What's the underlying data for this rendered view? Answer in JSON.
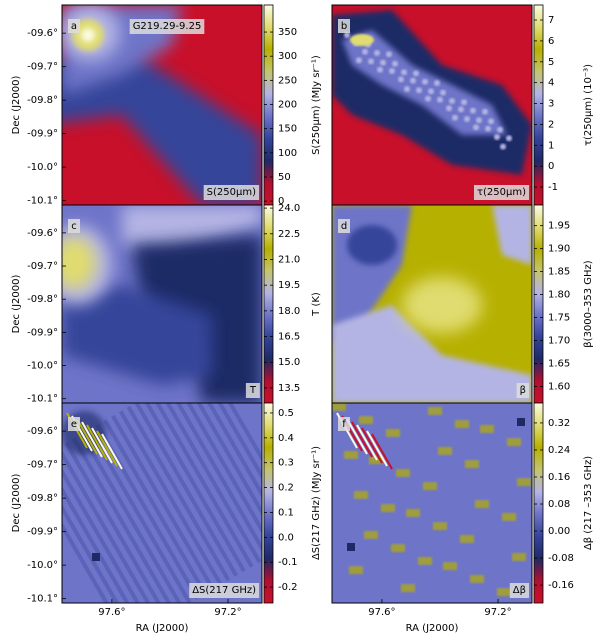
{
  "chart_data": [
    {
      "type": "heatmap",
      "panel_label": "a",
      "title": "G219.29-9.25",
      "annotation": "S(250μm)",
      "colorbar_label": "S(250μm) (MJy sr⁻¹)",
      "clim": [
        -8,
        406
      ],
      "cticks": [
        0,
        50,
        100,
        150,
        200,
        250,
        300,
        350
      ],
      "ylim": [
        -10.113,
        -9.516
      ],
      "yticks": [
        {
          "value": -9.6,
          "label": "-09.6°"
        },
        {
          "value": -9.7,
          "label": "-09.7°"
        },
        {
          "value": -9.8,
          "label": "-09.8°"
        },
        {
          "value": -9.9,
          "label": "-09.9°"
        },
        {
          "value": -10.0,
          "label": "-10.0°"
        },
        {
          "value": -10.1,
          "label": "-10.1°"
        }
      ],
      "ylabel": "Dec (J2000)"
    },
    {
      "type": "heatmap",
      "panel_label": "b",
      "annotation": "τ(250μm)",
      "colorbar_label": "τ(250μm) (10⁻³)",
      "clim": [
        -1.86,
        7.72
      ],
      "cticks": [
        -1,
        0,
        1,
        2,
        3,
        4,
        5,
        6,
        7
      ]
    },
    {
      "type": "heatmap",
      "panel_label": "c",
      "annotation": "T",
      "colorbar_label": "T (K)",
      "clim": [
        12.62,
        24.18
      ],
      "cticks": [
        13.5,
        {
          "value": 15,
          "label": "15.0"
        },
        16.5,
        {
          "value": 18,
          "label": "18.0"
        },
        19.5,
        {
          "value": 21,
          "label": "21.0"
        },
        22.5,
        {
          "value": 24,
          "label": "24.0"
        }
      ],
      "ylim": [
        -10.113,
        -9.516
      ],
      "yticks": [
        {
          "value": -9.6,
          "label": "-09.6°"
        },
        {
          "value": -9.7,
          "label": "-09.7°"
        },
        {
          "value": -9.8,
          "label": "-09.8°"
        },
        {
          "value": -9.9,
          "label": "-09.9°"
        },
        {
          "value": -10.0,
          "label": "-10.0°"
        },
        {
          "value": -10.1,
          "label": "-10.1°"
        }
      ],
      "ylabel": "Dec (J2000)"
    },
    {
      "type": "heatmap",
      "panel_label": "d",
      "annotation": "β",
      "colorbar_label": "β(3000–353 GHz)",
      "clim": [
        1.564,
        1.995
      ],
      "cticks": [
        {
          "value": 1.6,
          "label": "1.60"
        },
        1.65,
        {
          "value": 1.7,
          "label": "1.70"
        },
        1.75,
        {
          "value": 1.8,
          "label": "1.80"
        },
        1.85,
        {
          "value": 1.9,
          "label": "1.90"
        },
        1.95
      ]
    },
    {
      "type": "heatmap",
      "panel_label": "e",
      "annotation": "ΔS(217 GHz)",
      "colorbar_label": "ΔS(217 GHz) (MJy sr⁻¹)",
      "clim": [
        -0.264,
        0.54
      ],
      "cticks": [
        -0.2,
        -0.1,
        {
          "value": 0,
          "label": "0.0"
        },
        0.1,
        0.2,
        0.3,
        0.4,
        0.5
      ],
      "ylim": [
        -10.113,
        -9.516
      ],
      "yticks": [
        {
          "value": -9.6,
          "label": "-09.6°"
        },
        {
          "value": -9.7,
          "label": "-09.7°"
        },
        {
          "value": -9.8,
          "label": "-09.8°"
        },
        {
          "value": -9.9,
          "label": "-09.9°"
        },
        {
          "value": -10.0,
          "label": "-10.0°"
        },
        {
          "value": -10.1,
          "label": "-10.1°"
        }
      ],
      "ylabel": "Dec (J2000)",
      "xlim": [
        97.772,
        97.083
      ],
      "xticks": [
        {
          "value": 97.6,
          "label": "97.6°"
        },
        {
          "value": 97.2,
          "label": "97.2°"
        }
      ],
      "xlabel": "RA (J2000)"
    },
    {
      "type": "heatmap",
      "panel_label": "f",
      "annotation": "Δβ",
      "colorbar_label": "Δβ (217 –353 GHz)",
      "clim": [
        -0.213,
        0.379
      ],
      "cticks": [
        -0.16,
        -0.08,
        {
          "value": 0,
          "label": "0.00"
        },
        0.08,
        0.16,
        0.24,
        0.32
      ],
      "xlim": [
        97.772,
        97.083
      ],
      "xticks": [
        {
          "value": 97.6,
          "label": "97.6°"
        },
        {
          "value": 97.2,
          "label": "97.2°"
        }
      ],
      "xlabel": "RA (J2000)"
    }
  ],
  "colormap": [
    "#c8102a",
    "#b01030",
    "#1e2a66",
    "#34449a",
    "#6e74c8",
    "#b4b4e4",
    "#c4c470",
    "#b6b000",
    "#e0dc70",
    "#fbfbe4"
  ]
}
